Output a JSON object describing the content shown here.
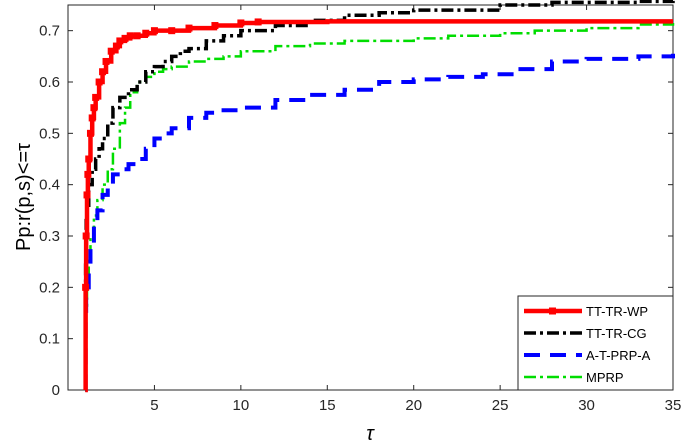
{
  "chart_data": {
    "type": "line",
    "title": "",
    "xlabel": "τ",
    "ylabel": "Pp:r(p,s)<=τ",
    "xlim": [
      0,
      35
    ],
    "ylim": [
      0,
      0.75
    ],
    "xticks": [
      5,
      10,
      15,
      20,
      25,
      30,
      35
    ],
    "yticks": [
      0,
      0.1,
      0.2,
      0.3,
      0.4,
      0.5,
      0.6,
      0.7
    ],
    "grid": false,
    "legend_position": "bottom-right",
    "series": [
      {
        "name": "TT-TR-WP",
        "color": "#ff0000",
        "style": "solid-square-markers",
        "x": [
          1.0,
          1.02,
          1.05,
          1.1,
          1.15,
          1.2,
          1.3,
          1.4,
          1.5,
          1.6,
          1.8,
          2.0,
          2.2,
          2.5,
          2.8,
          3.0,
          3.3,
          3.6,
          4.0,
          4.5,
          5.0,
          6.0,
          7.0,
          8.5,
          10.0,
          11.0,
          15.0,
          20.0,
          25.0,
          30.0,
          35.0
        ],
        "y": [
          0.0,
          0.2,
          0.3,
          0.38,
          0.42,
          0.45,
          0.5,
          0.53,
          0.55,
          0.57,
          0.6,
          0.62,
          0.64,
          0.66,
          0.67,
          0.68,
          0.685,
          0.69,
          0.69,
          0.695,
          0.7,
          0.7,
          0.705,
          0.71,
          0.715,
          0.717,
          0.718,
          0.718,
          0.718,
          0.718,
          0.718
        ]
      },
      {
        "name": "TT-TR-CG",
        "color": "#000000",
        "style": "dash-dot",
        "x": [
          1.0,
          1.02,
          1.05,
          1.1,
          1.2,
          1.4,
          1.6,
          1.8,
          2.0,
          2.3,
          2.6,
          3.0,
          3.5,
          4.0,
          4.5,
          5.0,
          5.5,
          6.0,
          6.5,
          7.0,
          8.0,
          9.0,
          10.0,
          12.0,
          14.0,
          16.0,
          18.0,
          20.0,
          22.0,
          25.0,
          28.0,
          30.0,
          33.0,
          35.0
        ],
        "y": [
          0.0,
          0.25,
          0.33,
          0.36,
          0.4,
          0.43,
          0.45,
          0.47,
          0.49,
          0.52,
          0.55,
          0.57,
          0.585,
          0.6,
          0.62,
          0.63,
          0.64,
          0.65,
          0.66,
          0.665,
          0.68,
          0.69,
          0.7,
          0.71,
          0.72,
          0.73,
          0.735,
          0.74,
          0.74,
          0.75,
          0.755,
          0.755,
          0.757,
          0.758
        ]
      },
      {
        "name": "A-T-PRP-A",
        "color": "#0000ff",
        "style": "dashed",
        "x": [
          1.0,
          1.02,
          1.05,
          1.1,
          1.2,
          1.3,
          1.5,
          1.7,
          2.0,
          2.3,
          2.6,
          3.0,
          3.5,
          4.0,
          4.5,
          5.0,
          5.5,
          6.0,
          7.0,
          8.0,
          9.0,
          10.0,
          12.0,
          14.0,
          16.0,
          18.0,
          20.0,
          22.0,
          24.0,
          26.0,
          28.0,
          30.0,
          33.0,
          35.0
        ],
        "y": [
          0.0,
          0.15,
          0.18,
          0.2,
          0.25,
          0.28,
          0.32,
          0.35,
          0.38,
          0.4,
          0.42,
          0.43,
          0.44,
          0.45,
          0.47,
          0.49,
          0.5,
          0.51,
          0.53,
          0.54,
          0.545,
          0.55,
          0.565,
          0.575,
          0.585,
          0.6,
          0.605,
          0.61,
          0.615,
          0.625,
          0.64,
          0.645,
          0.65,
          0.655
        ]
      },
      {
        "name": "MPRP",
        "color": "#00dd00",
        "style": "dash-dot",
        "x": [
          1.0,
          1.02,
          1.05,
          1.1,
          1.2,
          1.3,
          1.5,
          1.7,
          2.0,
          2.3,
          2.6,
          3.0,
          3.3,
          3.6,
          4.0,
          4.5,
          5.0,
          5.5,
          6.0,
          7.0,
          8.0,
          9.0,
          10.0,
          12.0,
          14.0,
          16.0,
          18.0,
          20.0,
          22.0,
          25.0,
          27.0,
          30.0,
          33.0,
          35.0
        ],
        "y": [
          0.0,
          0.12,
          0.16,
          0.2,
          0.25,
          0.3,
          0.34,
          0.37,
          0.4,
          0.43,
          0.47,
          0.52,
          0.55,
          0.58,
          0.6,
          0.61,
          0.62,
          0.625,
          0.63,
          0.64,
          0.645,
          0.65,
          0.66,
          0.67,
          0.675,
          0.68,
          0.68,
          0.685,
          0.69,
          0.695,
          0.7,
          0.705,
          0.712,
          0.715
        ]
      }
    ]
  }
}
